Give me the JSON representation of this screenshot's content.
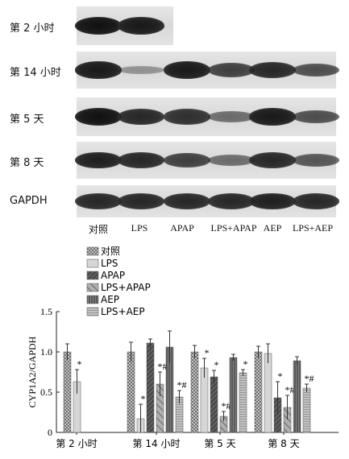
{
  "blot": {
    "rows": [
      {
        "label": "第 2 小时",
        "intensities": [
          1.0,
          0.95
        ]
      },
      {
        "label": "第 14 小时",
        "intensities": [
          0.95,
          0.15,
          0.95,
          0.7,
          0.85,
          0.6
        ]
      },
      {
        "label": "第 5 天",
        "intensities": [
          1.0,
          0.85,
          0.8,
          0.4,
          0.95,
          0.6
        ]
      },
      {
        "label": "第 8 天",
        "intensities": [
          0.9,
          0.85,
          0.7,
          0.4,
          0.85,
          0.55
        ]
      },
      {
        "label": "GAPDH",
        "intensities": [
          0.85,
          0.85,
          0.85,
          0.85,
          0.9,
          0.85
        ]
      }
    ],
    "lane_labels": [
      "对照",
      "LPS",
      "APAP",
      "LPS+APAP",
      "AEP",
      "LPS+AEP"
    ]
  },
  "chart_data": {
    "type": "bar",
    "ylabel": "CYP1A2/GAPDH",
    "ylim": [
      0,
      1.5
    ],
    "yticks": [
      "0",
      "0.5",
      "1.0",
      "1.5"
    ],
    "categories": [
      "第 2 小时",
      "第 14 小时",
      "第 5 天",
      "第 8 天"
    ],
    "series": [
      {
        "name": "对照",
        "values": [
          1.0,
          1.0,
          1.0,
          1.0
        ],
        "errors": [
          0.1,
          0.12,
          0.08,
          0.07
        ],
        "annotations": [
          "",
          "",
          "",
          ""
        ],
        "color": "#8a8a8a",
        "pattern": "checker"
      },
      {
        "name": "LPS",
        "values": [
          0.63,
          0.17,
          0.8,
          0.98
        ],
        "errors": [
          0.15,
          0.18,
          0.12,
          0.12
        ],
        "annotations": [
          "*",
          "*",
          "*",
          ""
        ],
        "color": "#d6d6d6",
        "pattern": "solid"
      },
      {
        "name": "APAP",
        "values": [
          null,
          1.11,
          0.69,
          0.43
        ],
        "errors": [
          null,
          0.05,
          0.08,
          0.2
        ],
        "annotations": [
          "",
          "",
          "*",
          "*"
        ],
        "color": "#555555",
        "pattern": "diag-dense"
      },
      {
        "name": "LPS+APAP",
        "values": [
          null,
          0.6,
          0.2,
          0.31
        ],
        "errors": [
          null,
          0.15,
          0.06,
          0.15
        ],
        "annotations": [
          "",
          "*#",
          "*#",
          "*#"
        ],
        "color": "#9a9a9a",
        "pattern": "diag-wide"
      },
      {
        "name": "AEP",
        "values": [
          null,
          1.06,
          0.93,
          0.89
        ],
        "errors": [
          null,
          0.2,
          0.04,
          0.05
        ],
        "annotations": [
          "",
          "",
          "",
          ""
        ],
        "color": "#6a6a6a",
        "pattern": "vstripe"
      },
      {
        "name": "LPS+AEP",
        "values": [
          null,
          0.44,
          0.74,
          0.55
        ],
        "errors": [
          null,
          0.08,
          0.04,
          0.05
        ],
        "annotations": [
          "",
          "*#",
          "*",
          "*#"
        ],
        "color": "#b5b5b5",
        "pattern": "hstripe"
      }
    ]
  }
}
